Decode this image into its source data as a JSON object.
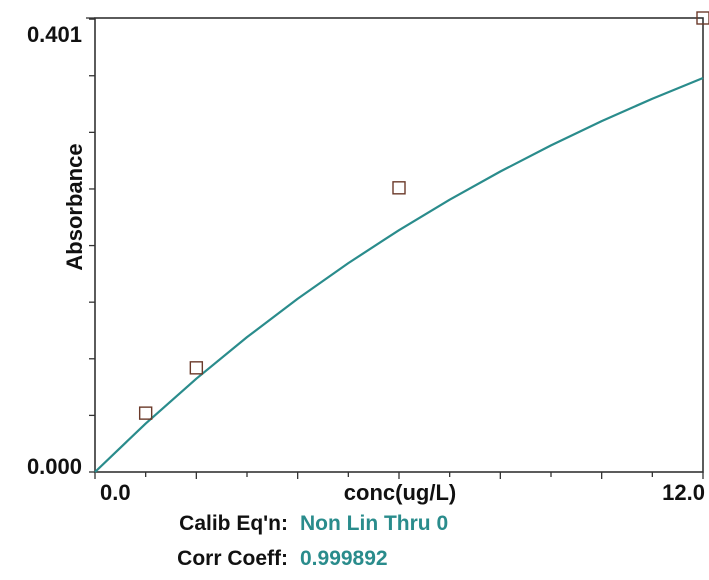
{
  "chart_data": {
    "type": "line",
    "xlabel": "conc(ug/L)",
    "ylabel": "Absorbance",
    "xlim": [
      0,
      12.0
    ],
    "ylim": [
      0,
      0.401
    ],
    "x_tick_labels": [
      "0.0",
      "12.0"
    ],
    "y_tick_labels": [
      "0.000",
      "0.401"
    ],
    "series": [
      {
        "type": "line",
        "x": [
          0,
          1,
          2,
          3,
          4,
          5,
          6,
          7,
          8,
          9,
          10,
          11,
          12
        ],
        "y": [
          0,
          0.0428,
          0.0824,
          0.1191,
          0.153,
          0.1845,
          0.2136,
          0.2405,
          0.2654,
          0.2885,
          0.3099,
          0.3297,
          0.348
        ]
      },
      {
        "type": "scatter",
        "x": [
          1.0,
          2.0,
          6.0,
          12.0
        ],
        "y": [
          0.052,
          0.092,
          0.251,
          0.401
        ]
      }
    ],
    "colors": {
      "curve": "#2a8c8c",
      "marker": "#6b3a2a",
      "axis": "#333333"
    },
    "grid": false
  },
  "footer": {
    "calib_label": "Calib Eq'n:",
    "calib_value": "Non Lin Thru 0",
    "corr_label": "Corr Coeff:",
    "corr_value": "0.999892",
    "value_color": "#2a8c8c"
  }
}
